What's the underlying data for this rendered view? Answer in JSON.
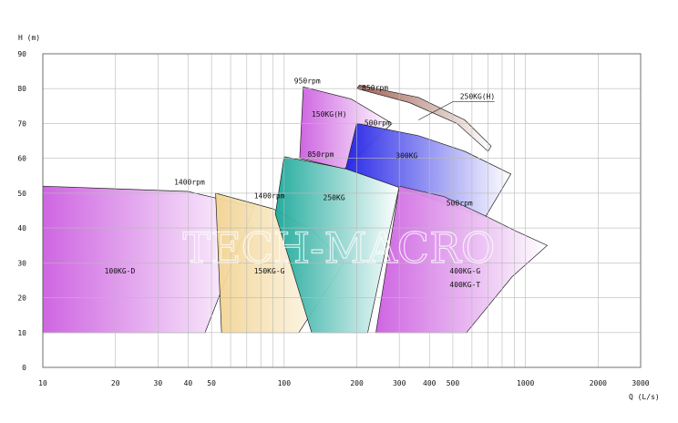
{
  "chart_data": {
    "type": "area",
    "ylabel": "H (m)",
    "xlabel": "Q (L/s)",
    "xscale": "log",
    "xlim": [
      10,
      3000
    ],
    "ylim": [
      0,
      90
    ],
    "xticks": [
      10,
      20,
      30,
      40,
      50,
      100,
      200,
      300,
      400,
      500,
      1000,
      2000,
      3000
    ],
    "yticks": [
      0,
      10,
      20,
      30,
      40,
      50,
      60,
      70,
      80,
      90
    ],
    "grid": true,
    "watermark": "TECH-MACRO",
    "colors": {
      "grid": "#b9b9b9",
      "orchid": "#cc5de0",
      "sand": "#f2d492",
      "teal": "#1aa89a",
      "blue": "#2020e6",
      "brown": "#9b5a4a"
    },
    "regions": [
      {
        "name": "100KG-D",
        "rpm": "1400rpm",
        "color": "orchid",
        "polygon": [
          [
            10,
            52
          ],
          [
            40,
            50.5
          ],
          [
            75,
            46
          ],
          [
            47,
            10
          ],
          [
            10,
            10
          ]
        ],
        "label_at": [
          18,
          27
        ],
        "rpm_at": [
          35,
          52.5
        ]
      },
      {
        "name": "150KG-G",
        "rpm": "1400rpm",
        "color": "sand",
        "polygon": [
          [
            52,
            50
          ],
          [
            90,
            45.5
          ],
          [
            130,
            39.5
          ],
          [
            177,
            30
          ],
          [
            115,
            10
          ],
          [
            55,
            10
          ]
        ],
        "label_at": [
          75,
          27
        ],
        "rpm_at": [
          75,
          48.5
        ]
      },
      {
        "name": "250KG",
        "rpm": "850rpm",
        "color": "teal",
        "polygon": [
          [
            100,
            60.5
          ],
          [
            180,
            57
          ],
          [
            300,
            52
          ],
          [
            222,
            10
          ],
          [
            130,
            10
          ],
          [
            92,
            44
          ]
        ],
        "label_at": [
          145,
          48
        ],
        "rpm_at": [
          125,
          60.5
        ]
      },
      {
        "name": "150KG(H)",
        "rpm": "950rpm",
        "color": "orchid",
        "polygon": [
          [
            120,
            80.5
          ],
          [
            190,
            77
          ],
          [
            280,
            70
          ],
          [
            178,
            57
          ],
          [
            116,
            60
          ]
        ],
        "label_at": [
          130,
          72
        ],
        "rpm_at": [
          110,
          81.5
        ]
      },
      {
        "name": "250KG(H)",
        "rpm": "850rpm",
        "color": "brown",
        "polygon": [
          [
            200,
            80
          ],
          [
            330,
            76
          ],
          [
            520,
            70
          ],
          [
            700,
            62
          ],
          [
            720,
            63.5
          ],
          [
            560,
            71
          ],
          [
            360,
            77.5
          ],
          [
            205,
            81
          ]
        ],
        "label_at": [
          535,
          77
        ],
        "rpm_at": [
          210,
          79.5
        ]
      },
      {
        "name": "300KG",
        "rpm": "500rpm",
        "color": "blue",
        "polygon": [
          [
            200,
            70
          ],
          [
            360,
            66.5
          ],
          [
            560,
            62
          ],
          [
            870,
            55.5
          ],
          [
            680,
            43
          ],
          [
            180,
            57
          ]
        ],
        "label_at": [
          290,
          60
        ],
        "rpm_at": [
          215,
          69.5
        ]
      },
      {
        "name": "400KG-G",
        "rpm": "500rpm",
        "color": "orchid",
        "polygon": [
          [
            300,
            52
          ],
          [
            460,
            49
          ],
          [
            680,
            43.5
          ],
          [
            920,
            39
          ],
          [
            1230,
            35
          ],
          [
            880,
            26
          ],
          [
            570,
            10
          ],
          [
            240,
            10
          ]
        ],
        "label_at": [
          485,
          27
        ],
        "rpm_at": [
          470,
          46.5
        ]
      }
    ],
    "extra_labels": [
      {
        "text": "400KG-T",
        "at": [
          485,
          23
        ]
      }
    ]
  }
}
